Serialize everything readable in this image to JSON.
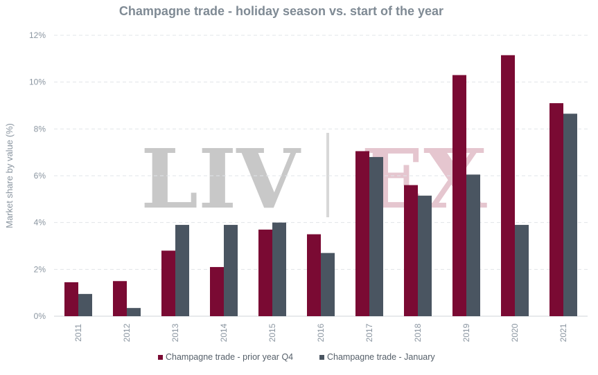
{
  "chart_data": {
    "type": "bar",
    "title": "Champagne trade - holiday season vs. start of the year",
    "ylabel": "Market share by value (%)",
    "xlabel": "",
    "categories": [
      "2011",
      "2012",
      "2013",
      "2014",
      "2015",
      "2016",
      "2017",
      "2018",
      "2019",
      "2020",
      "2021"
    ],
    "series": [
      {
        "name": "Champagne trade - prior year Q4",
        "color": "#7a0a33",
        "values": [
          1.45,
          1.5,
          2.8,
          2.1,
          3.7,
          3.5,
          7.05,
          5.6,
          10.3,
          11.15,
          9.1
        ]
      },
      {
        "name": "Champagne trade - January",
        "color": "#4a5561",
        "values": [
          0.95,
          0.35,
          3.9,
          3.9,
          4.0,
          2.7,
          6.8,
          5.15,
          6.05,
          3.9,
          8.65
        ]
      }
    ],
    "ylim": [
      0,
      12
    ],
    "yticks": [
      0,
      2,
      4,
      6,
      8,
      10,
      12
    ],
    "ytick_labels": [
      "0%",
      "2%",
      "4%",
      "6%",
      "8%",
      "10%",
      "12%"
    ],
    "grid": true,
    "legend_position": "bottom-center"
  },
  "watermark": {
    "left_text": "LIV",
    "right_text": "EX",
    "left_color": "#c8c8c8",
    "right_color": "#e5c6cf"
  },
  "colors": {
    "title": "#7f8a94",
    "axis_text": "#8a95a0",
    "grid": "#e1e4e8"
  }
}
